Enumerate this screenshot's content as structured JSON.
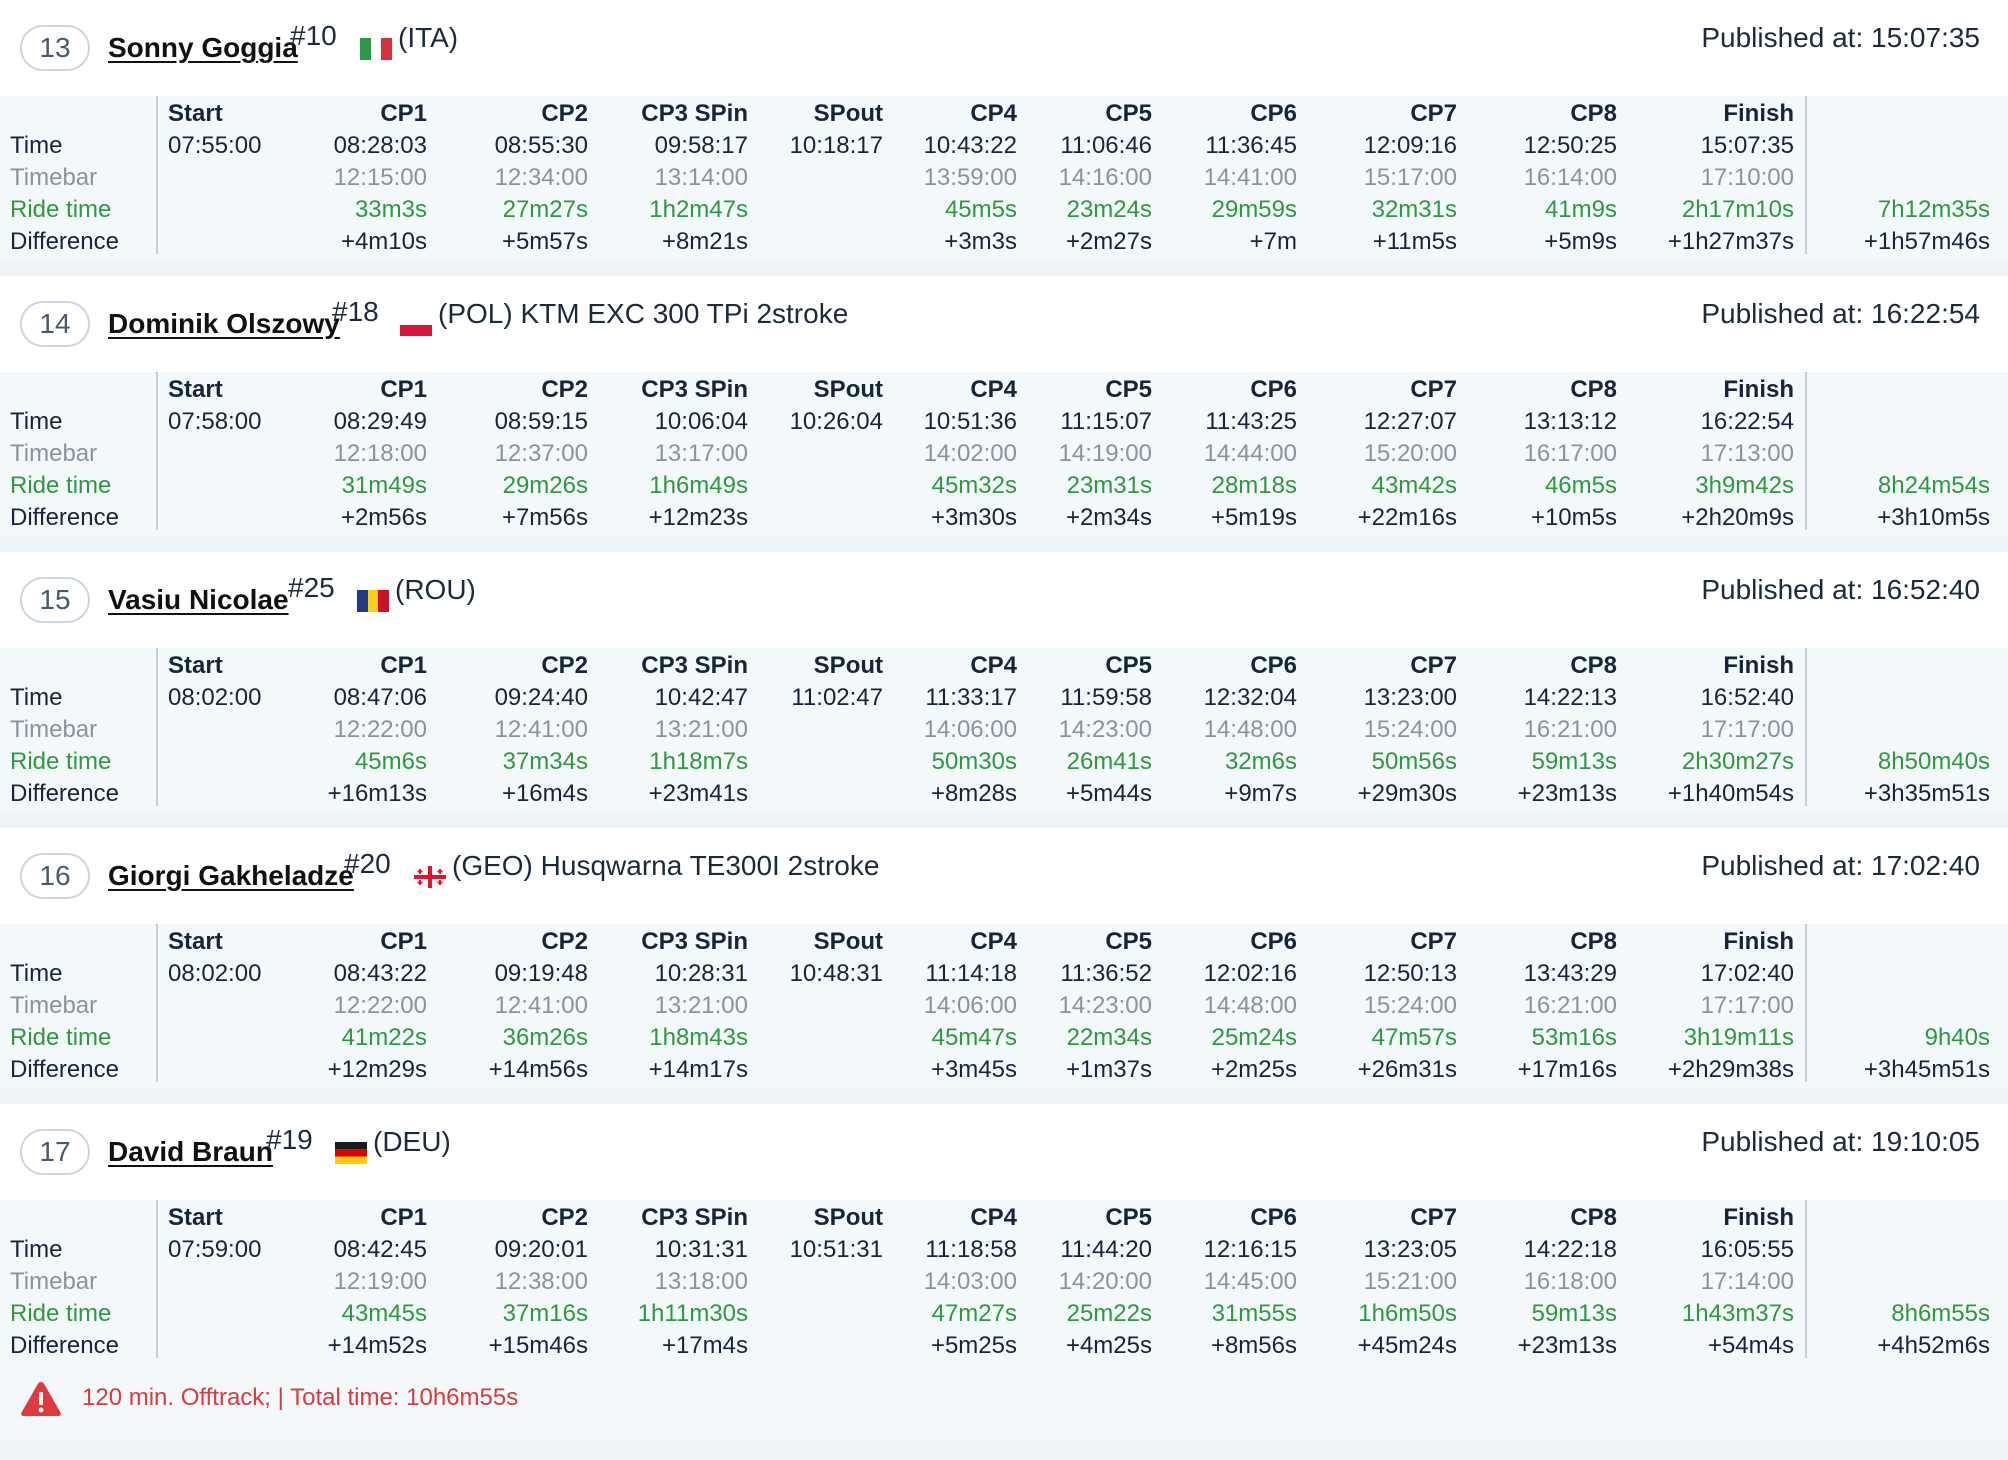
{
  "columns": [
    "Start",
    "CP1",
    "CP2",
    "CP3 SPin",
    "SPout",
    "CP4",
    "CP5",
    "CP6",
    "CP7",
    "CP8",
    "Finish"
  ],
  "row_labels": {
    "time": "Time",
    "timebar": "Timebar",
    "ride": "Ride time",
    "diff": "Difference"
  },
  "published_label": "Published at:",
  "riders": [
    {
      "position": "13",
      "name": "Sonny Goggia",
      "number": "#10",
      "flag": "ITA",
      "country": "(ITA)",
      "published": "15:07:35",
      "time": [
        "07:55:00",
        "08:28:03",
        "08:55:30",
        "09:58:17",
        "10:18:17",
        "10:43:22",
        "11:06:46",
        "11:36:45",
        "12:09:16",
        "12:50:25",
        "15:07:35"
      ],
      "timebar": [
        "",
        "12:15:00",
        "12:34:00",
        "13:14:00",
        "",
        "13:59:00",
        "14:16:00",
        "14:41:00",
        "15:17:00",
        "16:14:00",
        "17:10:00"
      ],
      "ride": [
        "",
        "33m3s",
        "27m27s",
        "1h2m47s",
        "",
        "45m5s",
        "23m24s",
        "29m59s",
        "32m31s",
        "41m9s",
        "2h17m10s"
      ],
      "diff": [
        "",
        "+4m10s",
        "+5m57s",
        "+8m21s",
        "",
        "+3m3s",
        "+2m27s",
        "+7m",
        "+11m5s",
        "+5m9s",
        "+1h27m37s"
      ],
      "total_ride": "7h12m35s",
      "total_diff": "+1h57m46s"
    },
    {
      "position": "14",
      "name": "Dominik Olszowy",
      "number": "#18",
      "flag": "POL",
      "country": "(POL) KTM EXC 300 TPi 2stroke",
      "published": "16:22:54",
      "time": [
        "07:58:00",
        "08:29:49",
        "08:59:15",
        "10:06:04",
        "10:26:04",
        "10:51:36",
        "11:15:07",
        "11:43:25",
        "12:27:07",
        "13:13:12",
        "16:22:54"
      ],
      "timebar": [
        "",
        "12:18:00",
        "12:37:00",
        "13:17:00",
        "",
        "14:02:00",
        "14:19:00",
        "14:44:00",
        "15:20:00",
        "16:17:00",
        "17:13:00"
      ],
      "ride": [
        "",
        "31m49s",
        "29m26s",
        "1h6m49s",
        "",
        "45m32s",
        "23m31s",
        "28m18s",
        "43m42s",
        "46m5s",
        "3h9m42s"
      ],
      "diff": [
        "",
        "+2m56s",
        "+7m56s",
        "+12m23s",
        "",
        "+3m30s",
        "+2m34s",
        "+5m19s",
        "+22m16s",
        "+10m5s",
        "+2h20m9s"
      ],
      "total_ride": "8h24m54s",
      "total_diff": "+3h10m5s"
    },
    {
      "position": "15",
      "name": "Vasiu Nicolae",
      "number": "#25",
      "flag": "ROU",
      "country": "(ROU)",
      "published": "16:52:40",
      "time": [
        "08:02:00",
        "08:47:06",
        "09:24:40",
        "10:42:47",
        "11:02:47",
        "11:33:17",
        "11:59:58",
        "12:32:04",
        "13:23:00",
        "14:22:13",
        "16:52:40"
      ],
      "timebar": [
        "",
        "12:22:00",
        "12:41:00",
        "13:21:00",
        "",
        "14:06:00",
        "14:23:00",
        "14:48:00",
        "15:24:00",
        "16:21:00",
        "17:17:00"
      ],
      "ride": [
        "",
        "45m6s",
        "37m34s",
        "1h18m7s",
        "",
        "50m30s",
        "26m41s",
        "32m6s",
        "50m56s",
        "59m13s",
        "2h30m27s"
      ],
      "diff": [
        "",
        "+16m13s",
        "+16m4s",
        "+23m41s",
        "",
        "+8m28s",
        "+5m44s",
        "+9m7s",
        "+29m30s",
        "+23m13s",
        "+1h40m54s"
      ],
      "total_ride": "8h50m40s",
      "total_diff": "+3h35m51s"
    },
    {
      "position": "16",
      "name": "Giorgi Gakheladze",
      "number": "#20",
      "flag": "GEO",
      "country": "(GEO) Husqwarna TE300I 2stroke",
      "published": "17:02:40",
      "time": [
        "08:02:00",
        "08:43:22",
        "09:19:48",
        "10:28:31",
        "10:48:31",
        "11:14:18",
        "11:36:52",
        "12:02:16",
        "12:50:13",
        "13:43:29",
        "17:02:40"
      ],
      "timebar": [
        "",
        "12:22:00",
        "12:41:00",
        "13:21:00",
        "",
        "14:06:00",
        "14:23:00",
        "14:48:00",
        "15:24:00",
        "16:21:00",
        "17:17:00"
      ],
      "ride": [
        "",
        "41m22s",
        "36m26s",
        "1h8m43s",
        "",
        "45m47s",
        "22m34s",
        "25m24s",
        "47m57s",
        "53m16s",
        "3h19m11s"
      ],
      "diff": [
        "",
        "+12m29s",
        "+14m56s",
        "+14m17s",
        "",
        "+3m45s",
        "+1m37s",
        "+2m25s",
        "+26m31s",
        "+17m16s",
        "+2h29m38s"
      ],
      "total_ride": "9h40s",
      "total_diff": "+3h45m51s"
    },
    {
      "position": "17",
      "name": "David Braun",
      "number": "#19",
      "flag": "DEU",
      "country": "(DEU)",
      "published": "19:10:05",
      "time": [
        "07:59:00",
        "08:42:45",
        "09:20:01",
        "10:31:31",
        "10:51:31",
        "11:18:58",
        "11:44:20",
        "12:16:15",
        "13:23:05",
        "14:22:18",
        "16:05:55"
      ],
      "timebar": [
        "",
        "12:19:00",
        "12:38:00",
        "13:18:00",
        "",
        "14:03:00",
        "14:20:00",
        "14:45:00",
        "15:21:00",
        "16:18:00",
        "17:14:00"
      ],
      "ride": [
        "",
        "43m45s",
        "37m16s",
        "1h11m30s",
        "",
        "47m27s",
        "25m22s",
        "31m55s",
        "1h6m50s",
        "59m13s",
        "1h43m37s"
      ],
      "diff": [
        "",
        "+14m52s",
        "+15m46s",
        "+17m4s",
        "",
        "+5m25s",
        "+4m25s",
        "+8m56s",
        "+45m24s",
        "+23m13s",
        "+54m4s"
      ],
      "total_ride": "8h6m55s",
      "total_diff": "+4h52m6s",
      "penalty": "120 min. Offtrack; | Total time: 10h6m55s"
    }
  ],
  "colors": {
    "ride_time_green": "#2c9a3c",
    "timebar_gray": "#8a939c",
    "penalty_red": "#dc3a3a",
    "text_dark": "#16253a"
  },
  "icons": {
    "penalty": "warning-triangle-icon"
  }
}
